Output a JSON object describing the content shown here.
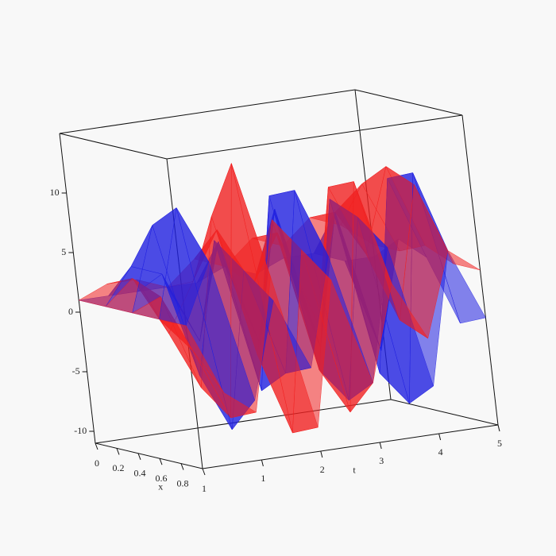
{
  "chart_data": {
    "type": "surface3d",
    "xlabel": "x",
    "tlabel": "t",
    "x": [
      0,
      0.25,
      0.5,
      0.75,
      1
    ],
    "t": [
      0,
      0.5,
      1,
      1.5,
      2,
      2.5,
      3,
      3.5,
      4,
      4.5,
      5
    ],
    "xlim": [
      0,
      1
    ],
    "tlim": [
      0,
      5
    ],
    "zlim": [
      -11,
      15
    ],
    "xticks": [
      0,
      0.2,
      0.4,
      0.6,
      0.8,
      1
    ],
    "tticks": [
      1,
      2,
      3,
      4,
      5
    ],
    "zticks": [
      -10,
      -5,
      0,
      5,
      10
    ],
    "series": [
      {
        "color": "#1f1fe0",
        "values": [
          [
            1,
            1,
            1,
            1,
            1,
            2,
            1,
            2,
            2,
            1,
            1
          ],
          [
            1,
            4,
            3,
            -3,
            5,
            -4,
            7,
            -5,
            6,
            -6,
            3
          ],
          [
            1,
            8,
            -5,
            6,
            -7,
            9,
            -6,
            8,
            -7,
            9,
            2
          ],
          [
            1,
            10,
            -9,
            4,
            -5,
            10,
            -8,
            7,
            -9,
            10,
            -3
          ],
          [
            1,
            6,
            -6,
            2,
            -4,
            5,
            -6,
            5,
            -7,
            4,
            -2
          ]
        ]
      },
      {
        "color": "#f02020",
        "values": [
          [
            1,
            2,
            2,
            1,
            3,
            2,
            4,
            3,
            5,
            4,
            2
          ],
          [
            1,
            3,
            -2,
            2,
            6,
            1,
            5,
            -3,
            6,
            8,
            2
          ],
          [
            1,
            2,
            -6,
            8,
            -4,
            7,
            -6,
            9,
            3,
            10,
            3
          ],
          [
            1,
            -2,
            -8,
            13,
            -10,
            5,
            -9,
            10,
            -2,
            9,
            2
          ],
          [
            1,
            -5,
            -7,
            4,
            -9,
            3,
            -6,
            2,
            -3,
            4,
            2
          ]
        ]
      }
    ]
  }
}
